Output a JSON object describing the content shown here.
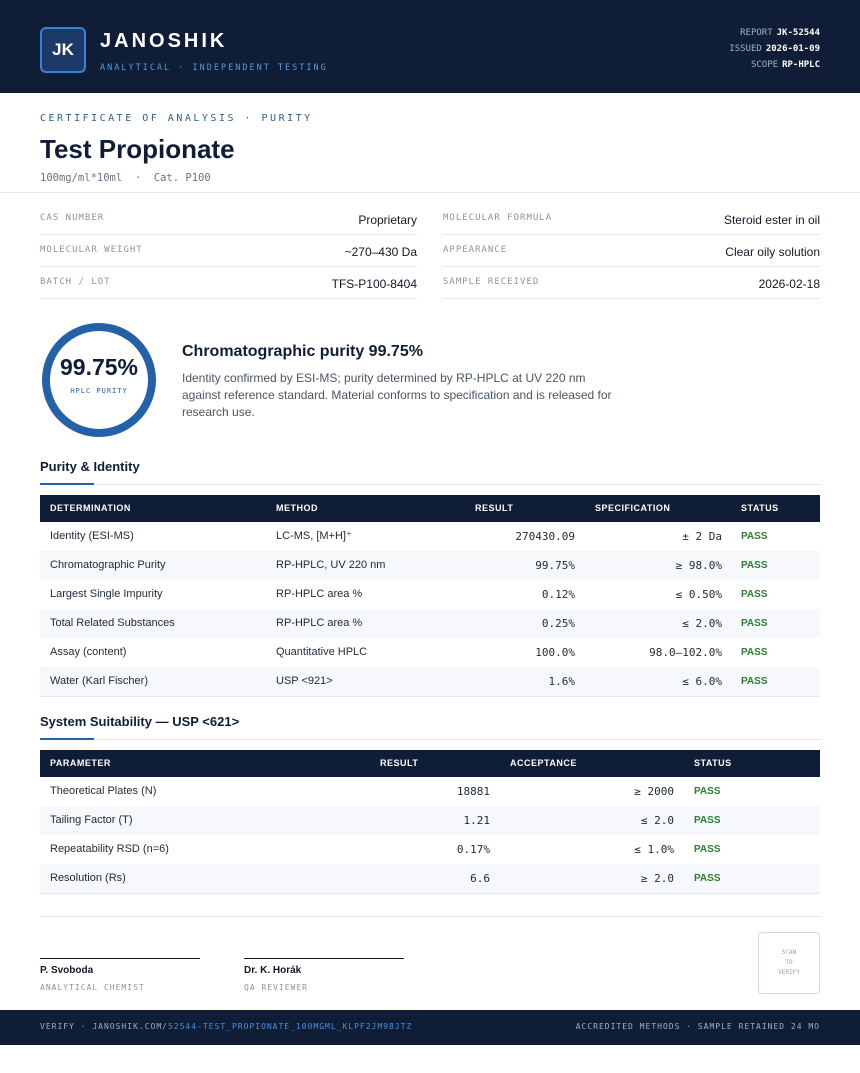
{
  "header": {
    "logo": "JK",
    "brand": "JANOSHIK",
    "tagline": "ANALYTICAL · INDEPENDENT TESTING",
    "meta": [
      {
        "label": "REPORT",
        "value": "JK-52544"
      },
      {
        "label": "ISSUED",
        "value": "2026-01-09"
      },
      {
        "label": "SCOPE",
        "value": "RP-HPLC"
      }
    ]
  },
  "product": {
    "kicker": "CERTIFICATE OF ANALYSIS · PURITY",
    "title": "Test Propionate",
    "subtitle": "100mg/ml*10ml  ·  Cat. P100"
  },
  "properties": [
    {
      "label": "CAS NUMBER",
      "value": "Proprietary"
    },
    {
      "label": "MOLECULAR FORMULA",
      "value": "Steroid ester in oil"
    },
    {
      "label": "MOLECULAR WEIGHT",
      "value": "~270–430 Da"
    },
    {
      "label": "APPEARANCE",
      "value": "Clear oily solution"
    },
    {
      "label": "BATCH / LOT",
      "value": "TFS-P100-8404"
    },
    {
      "label": "SAMPLE RECEIVED",
      "value": "2026-02-18"
    }
  ],
  "summary": {
    "gauge_value": "99.75%",
    "gauge_caption": "HPLC PURITY",
    "heading": "Chromatographic purity 99.75%",
    "body": "Identity confirmed by ESI-MS; purity determined by RP-HPLC at UV 220 nm against reference standard. Material conforms to specification and is released for research use."
  },
  "purity": {
    "title": "Purity & Identity",
    "columns": [
      "DETERMINATION",
      "METHOD",
      "RESULT",
      "SPECIFICATION",
      "STATUS"
    ],
    "rows": [
      [
        "Identity (ESI-MS)",
        "LC-MS, [M+H]⁺",
        "270430.09",
        "± 2 Da",
        "PASS"
      ],
      [
        "Chromatographic Purity",
        "RP-HPLC, UV 220 nm",
        "99.75%",
        "≥ 98.0%",
        "PASS"
      ],
      [
        "Largest Single Impurity",
        "RP-HPLC area %",
        "0.12%",
        "≤ 0.50%",
        "PASS"
      ],
      [
        "Total Related Substances",
        "RP-HPLC area %",
        "0.25%",
        "≤ 2.0%",
        "PASS"
      ],
      [
        "Assay (content)",
        "Quantitative HPLC",
        "100.0%",
        "98.0–102.0%",
        "PASS"
      ],
      [
        "Water (Karl Fischer)",
        "USP <921>",
        "1.6%",
        "≤ 6.0%",
        "PASS"
      ]
    ]
  },
  "suitability": {
    "title": "System Suitability — USP <621>",
    "columns": [
      "PARAMETER",
      "RESULT",
      "ACCEPTANCE",
      "STATUS"
    ],
    "rows": [
      [
        "Theoretical Plates (N)",
        "18881",
        "≥ 2000",
        "PASS"
      ],
      [
        "Tailing Factor (T)",
        "1.21",
        "≤ 2.0",
        "PASS"
      ],
      [
        "Repeatability RSD (n=6)",
        "0.17%",
        "≤ 1.0%",
        "PASS"
      ],
      [
        "Resolution (Rs)",
        "6.6",
        "≥ 2.0",
        "PASS"
      ]
    ]
  },
  "signatures": [
    {
      "name": "P. Svoboda",
      "role": "ANALYTICAL CHEMIST"
    },
    {
      "name": "Dr. K. Horák",
      "role": "QA REVIEWER"
    }
  ],
  "qr": [
    "SCAN",
    "TO",
    "VERIFY"
  ],
  "footer": {
    "verify": "VERIFY · JANOSHIK.COM/",
    "link": "52544-TEST_PROPIONATE_100MGML_KLPF2JM98JTZ",
    "right": "ACCREDITED METHODS · SAMPLE RETAINED 24 MO"
  }
}
